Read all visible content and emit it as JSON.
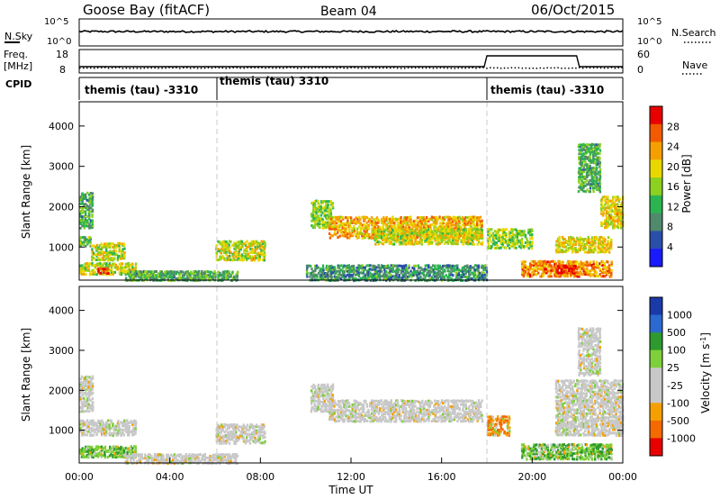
{
  "header": {
    "station": "Goose Bay (fitACF)",
    "beam": "Beam 04",
    "date": "06/Oct/2015"
  },
  "strips": {
    "nsky_label": "N.Sky",
    "nsearch_label": "N.Search",
    "freq_label_1": "Freq.",
    "freq_label_2": "[MHz]",
    "nave_label": "Nave",
    "cpid_label": "CPID",
    "nsky_ticks": [
      "10^5",
      "10^0"
    ],
    "nsearch_ticks": [
      "10^5",
      "10^0"
    ],
    "freq_ticks": [
      "18",
      "8"
    ],
    "nave_ticks": [
      "60",
      "0"
    ],
    "cpid_segments": [
      {
        "label": "themis (tau) -3310",
        "start_hour": 0
      },
      {
        "label": "themis (tau) 3310",
        "start_hour": 6
      },
      {
        "label": "themis (tau) -3310",
        "start_hour": 18
      }
    ]
  },
  "chart_data": [
    {
      "type": "heatmap",
      "panel": "power",
      "ylabel": "Slant Range [km]",
      "ylim": [
        180,
        4600
      ],
      "xlim": [
        0,
        24
      ],
      "yticks": [
        "4000",
        "3000",
        "2000",
        "1000"
      ],
      "colorbar_label": "Power [dB]",
      "colorbar_ticks": [
        "28",
        "24",
        "20",
        "16",
        "12",
        "8",
        "4"
      ],
      "colorbar_colors": [
        "#e80000",
        "#f25a00",
        "#f5a000",
        "#e8d800",
        "#8cd020",
        "#2cb450",
        "#4f8a6c",
        "#2a4fa8",
        "#1a1aff"
      ],
      "regions": [
        {
          "t": [
            0.0,
            0.6
          ],
          "r": [
            1500,
            2400
          ],
          "level": 10
        },
        {
          "t": [
            0.0,
            0.5
          ],
          "r": [
            1050,
            1300
          ],
          "level": 12
        },
        {
          "t": [
            0.5,
            2.0
          ],
          "r": [
            700,
            1150
          ],
          "level": 16
        },
        {
          "t": [
            0.0,
            2.5
          ],
          "r": [
            350,
            650
          ],
          "level": 16
        },
        {
          "t": [
            0.8,
            1.3
          ],
          "r": [
            380,
            520
          ],
          "level": 26
        },
        {
          "t": [
            2.0,
            7.0
          ],
          "r": [
            200,
            450
          ],
          "level": 10
        },
        {
          "t": [
            6.0,
            8.2
          ],
          "r": [
            700,
            1200
          ],
          "level": 16
        },
        {
          "t": [
            10.2,
            11.2
          ],
          "r": [
            1500,
            2200
          ],
          "level": 14
        },
        {
          "t": [
            11.0,
            17.8
          ],
          "r": [
            1250,
            1800
          ],
          "level": 20
        },
        {
          "t": [
            13.0,
            17.8
          ],
          "r": [
            1100,
            1500
          ],
          "level": 16
        },
        {
          "t": [
            10.0,
            18.0
          ],
          "r": [
            200,
            600
          ],
          "level": 8
        },
        {
          "t": [
            18.0,
            20.0
          ],
          "r": [
            1000,
            1500
          ],
          "level": 14
        },
        {
          "t": [
            19.5,
            23.5
          ],
          "r": [
            300,
            700
          ],
          "level": 22
        },
        {
          "t": [
            21.0,
            22.0
          ],
          "r": [
            380,
            600
          ],
          "level": 28
        },
        {
          "t": [
            21.0,
            23.5
          ],
          "r": [
            900,
            1300
          ],
          "level": 18
        },
        {
          "t": [
            23.0,
            24.0
          ],
          "r": [
            1500,
            2300
          ],
          "level": 18
        },
        {
          "t": [
            22.0,
            23.0
          ],
          "r": [
            2400,
            3600
          ],
          "level": 10
        }
      ]
    },
    {
      "type": "heatmap",
      "panel": "velocity",
      "ylabel": "Slant Range [km]",
      "xlabel": "Time UT",
      "ylim": [
        180,
        4600
      ],
      "xlim": [
        0,
        24
      ],
      "yticks": [
        "4000",
        "3000",
        "2000",
        "1000"
      ],
      "xticks": [
        "00:00",
        "04:00",
        "08:00",
        "12:00",
        "16:00",
        "20:00",
        "00:00"
      ],
      "colorbar_label": "Velocity [m s^-1]",
      "colorbar_ticks": [
        "1000",
        "500",
        "100",
        "25",
        "-25",
        "-100",
        "-500",
        "-1000"
      ],
      "colorbar_colors": [
        "#1a3aa8",
        "#2a6ad0",
        "#2e9a2e",
        "#7ed03a",
        "#c8c8c8",
        "#c8c8c8",
        "#f5a000",
        "#f26a00",
        "#e80000"
      ],
      "regions": [
        {
          "t": [
            0.0,
            0.6
          ],
          "r": [
            1500,
            2400
          ],
          "vel": 0
        },
        {
          "t": [
            0.0,
            2.5
          ],
          "r": [
            900,
            1300
          ],
          "vel": 0
        },
        {
          "t": [
            0.0,
            2.5
          ],
          "r": [
            350,
            650
          ],
          "vel": 200
        },
        {
          "t": [
            2.0,
            7.0
          ],
          "r": [
            200,
            450
          ],
          "vel": -100
        },
        {
          "t": [
            6.0,
            8.2
          ],
          "r": [
            700,
            1200
          ],
          "vel": -80
        },
        {
          "t": [
            10.2,
            11.2
          ],
          "r": [
            1500,
            2200
          ],
          "vel": 0
        },
        {
          "t": [
            11.0,
            17.8
          ],
          "r": [
            1250,
            1800
          ],
          "vel": 0
        },
        {
          "t": [
            18.0,
            19.0
          ],
          "r": [
            900,
            1400
          ],
          "vel": -400
        },
        {
          "t": [
            19.5,
            23.5
          ],
          "r": [
            300,
            700
          ],
          "vel": 150
        },
        {
          "t": [
            21.0,
            24.0
          ],
          "r": [
            900,
            2300
          ],
          "vel": 0
        },
        {
          "t": [
            22.0,
            23.0
          ],
          "r": [
            2400,
            3600
          ],
          "vel": 0
        }
      ]
    }
  ]
}
